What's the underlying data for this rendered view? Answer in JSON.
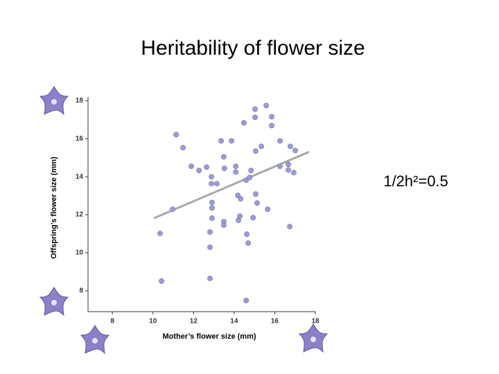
{
  "chart_data": {
    "type": "scatter",
    "title": "Heritability of flower size",
    "annotation": "1/2h²=0.5",
    "x_label": "Mother’s flower size (mm)",
    "y_label": "Offspring’s flower size (mm)",
    "color": "#9c9cd4",
    "x": [
      11.14,
      11.48,
      11.89,
      12.27,
      12.64,
      10.97,
      10.35,
      10.42,
      12.88,
      12.88,
      13.15,
      12.91,
      12.91,
      12.91,
      12.81,
      12.81,
      12.81,
      13.36,
      13.87,
      13.49,
      13.52,
      14.08,
      14.08,
      14.18,
      14.32,
      13.49,
      13.49,
      14.21,
      14.28,
      14.48,
      15.03,
      15.58,
      15.03,
      15.85,
      15.85,
      15.34,
      15.06,
      16.26,
      16.77,
      17.01,
      14.59,
      14.76,
      14.83,
      15.06,
      15.13,
      15.65,
      14.93,
      14.62,
      14.69,
      14.59,
      16.26,
      16.67,
      16.67,
      16.94,
      16.74
    ],
    "y": [
      16.22,
      15.53,
      14.55,
      14.33,
      14.51,
      12.29,
      11.02,
      8.51,
      14.0,
      13.64,
      13.64,
      12.65,
      12.36,
      11.82,
      11.09,
      10.29,
      8.65,
      15.89,
      15.89,
      15.05,
      14.44,
      14.55,
      14.25,
      13.02,
      12.84,
      11.64,
      11.45,
      11.71,
      11.93,
      16.84,
      17.56,
      17.75,
      17.13,
      17.16,
      16.69,
      15.6,
      15.35,
      15.89,
      15.6,
      15.38,
      13.82,
      13.96,
      14.33,
      13.09,
      12.62,
      12.29,
      11.85,
      10.98,
      10.51,
      7.49,
      14.55,
      14.65,
      14.36,
      14.22,
      11.38
    ],
    "trend": {
      "color": "#a8a8a8",
      "x": [
        10.05,
        17.69
      ],
      "y": [
        11.82,
        15.31
      ]
    },
    "xlim": [
      6.8,
      18
    ],
    "ylim": [
      6.9,
      18.2
    ],
    "xticks": [
      8,
      10,
      12,
      14,
      16,
      18
    ],
    "yticks": [
      8,
      10,
      12,
      14,
      16,
      18
    ]
  }
}
